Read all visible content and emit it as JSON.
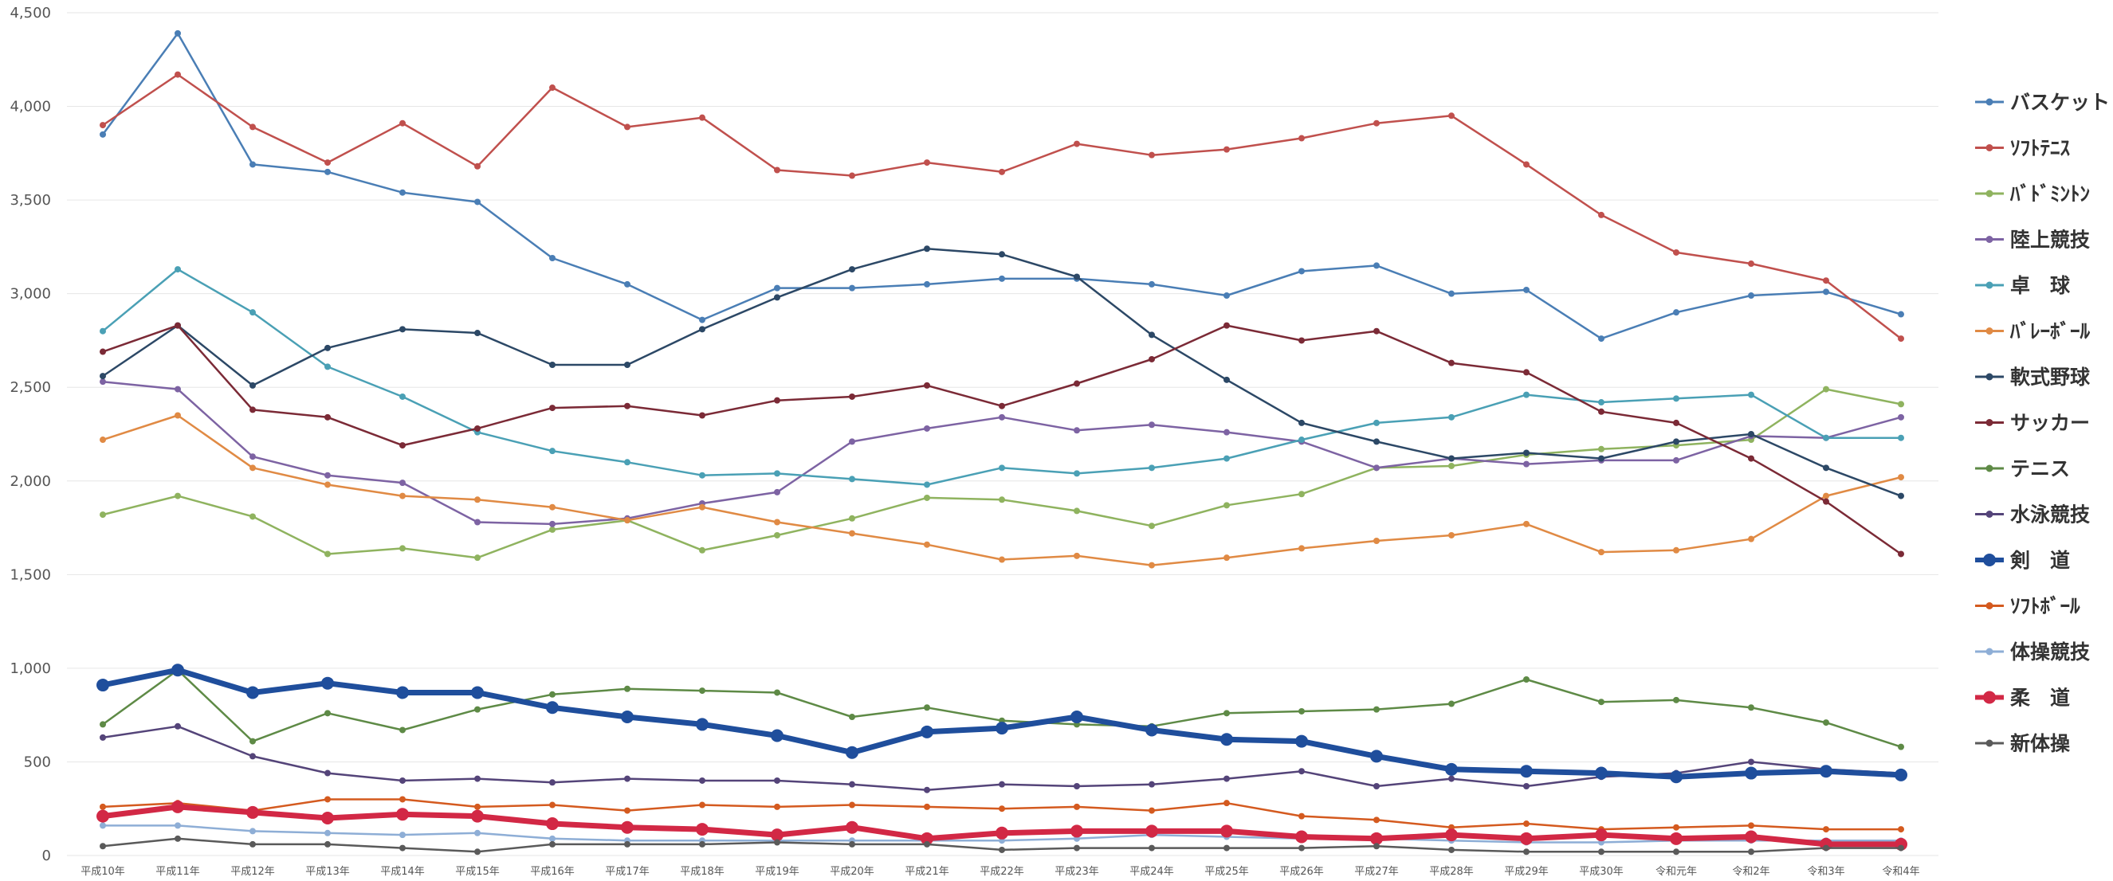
{
  "chart_data": {
    "type": "line",
    "title": "",
    "xlabel": "",
    "ylabel": "",
    "ylim": [
      0,
      4500
    ],
    "yticks": [
      0,
      500,
      1000,
      1500,
      2000,
      2500,
      3000,
      3500,
      4000,
      4500
    ],
    "ytick_labels": [
      "0",
      "500",
      "1,000",
      "1,500",
      "2,000",
      "2,500",
      "3,000",
      "3,500",
      "4,000",
      "4,500"
    ],
    "grid": true,
    "legend_position": "right",
    "categories": [
      "平成10年",
      "平成11年",
      "平成12年",
      "平成13年",
      "平成14年",
      "平成15年",
      "平成16年",
      "平成17年",
      "平成18年",
      "平成19年",
      "平成20年",
      "平成21年",
      "平成22年",
      "平成23年",
      "平成24年",
      "平成25年",
      "平成26年",
      "平成27年",
      "平成28年",
      "平成29年",
      "平成30年",
      "令和元年",
      "令和2年",
      "令和3年",
      "令和4年"
    ],
    "series": [
      {
        "name": "バスケット",
        "color": "#4a7eb5",
        "width": 2.5,
        "marker": 4,
        "values": [
          3850,
          4390,
          3690,
          3650,
          3540,
          3490,
          3190,
          3050,
          2860,
          3030,
          3030,
          3050,
          3080,
          3080,
          3050,
          2990,
          3120,
          3150,
          3000,
          3020,
          2760,
          2900,
          2990,
          3010,
          2890
        ]
      },
      {
        "name": "ｿﾌﾄﾃﾆｽ",
        "color": "#c0504d",
        "width": 2.5,
        "marker": 4,
        "values": [
          3900,
          4170,
          3890,
          3700,
          3910,
          3680,
          4100,
          3890,
          3940,
          3660,
          3630,
          3700,
          3650,
          3800,
          3740,
          3770,
          3830,
          3910,
          3950,
          3690,
          3420,
          3220,
          3160,
          3070,
          2760
        ]
      },
      {
        "name": "ﾊﾞﾄﾞﾐﾝﾄﾝ",
        "color": "#8fb35f",
        "width": 2.5,
        "marker": 4,
        "values": [
          1820,
          1920,
          1810,
          1610,
          1640,
          1590,
          1740,
          1790,
          1630,
          1710,
          1800,
          1910,
          1900,
          1840,
          1760,
          1870,
          1930,
          2070,
          2080,
          2140,
          2170,
          2190,
          2220,
          2490,
          2410
        ]
      },
      {
        "name": "陸上競技",
        "color": "#7d63a3",
        "width": 2.5,
        "marker": 4,
        "values": [
          2530,
          2490,
          2130,
          2030,
          1990,
          1780,
          1770,
          1800,
          1880,
          1940,
          2210,
          2280,
          2340,
          2270,
          2300,
          2260,
          2210,
          2070,
          2120,
          2090,
          2110,
          2110,
          2240,
          2230,
          2340
        ]
      },
      {
        "name": "卓　球",
        "color": "#4aa0b5",
        "width": 2.5,
        "marker": 4,
        "values": [
          2800,
          3130,
          2900,
          2610,
          2450,
          2260,
          2160,
          2100,
          2030,
          2040,
          2010,
          1980,
          2070,
          2040,
          2070,
          2120,
          2220,
          2310,
          2340,
          2460,
          2420,
          2440,
          2460,
          2230,
          2230
        ]
      },
      {
        "name": "ﾊﾞﾚｰﾎﾞｰﾙ",
        "color": "#e08a44",
        "width": 2.5,
        "marker": 4,
        "values": [
          2220,
          2350,
          2070,
          1980,
          1920,
          1900,
          1860,
          1790,
          1860,
          1780,
          1720,
          1660,
          1580,
          1600,
          1550,
          1590,
          1640,
          1680,
          1710,
          1770,
          1620,
          1630,
          1690,
          1920,
          2020
        ]
      },
      {
        "name": "軟式野球",
        "color": "#2c4866",
        "width": 2.5,
        "marker": 4,
        "values": [
          2560,
          2830,
          2510,
          2710,
          2810,
          2790,
          2620,
          2620,
          2810,
          2980,
          3130,
          3240,
          3210,
          3090,
          2780,
          2540,
          2310,
          2210,
          2120,
          2150,
          2120,
          2210,
          2250,
          2070,
          1920
        ]
      },
      {
        "name": "サッカー",
        "color": "#7b2a36",
        "width": 2.5,
        "marker": 4,
        "values": [
          2690,
          2830,
          2380,
          2340,
          2190,
          2280,
          2390,
          2400,
          2350,
          2430,
          2450,
          2510,
          2400,
          2520,
          2650,
          2830,
          2750,
          2800,
          2630,
          2580,
          2370,
          2310,
          2120,
          1890,
          1610
        ]
      },
      {
        "name": "テニス",
        "color": "#5e8a46",
        "width": 2.5,
        "marker": 4,
        "values": [
          700,
          990,
          610,
          760,
          670,
          780,
          860,
          890,
          880,
          870,
          740,
          790,
          720,
          700,
          690,
          760,
          770,
          780,
          810,
          940,
          820,
          830,
          790,
          710,
          580
        ]
      },
      {
        "name": "水泳競技",
        "color": "#544479",
        "width": 2.5,
        "marker": 4,
        "values": [
          630,
          690,
          530,
          440,
          400,
          410,
          390,
          410,
          400,
          400,
          380,
          350,
          380,
          370,
          380,
          410,
          450,
          370,
          410,
          370,
          420,
          440,
          500,
          460,
          440
        ]
      },
      {
        "name": "剣　道",
        "color": "#1f4e9c",
        "width": 7,
        "marker": 8,
        "values": [
          910,
          990,
          870,
          920,
          870,
          870,
          790,
          740,
          700,
          640,
          550,
          660,
          680,
          740,
          670,
          620,
          610,
          530,
          460,
          450,
          440,
          420,
          440,
          450,
          430
        ]
      },
      {
        "name": "ｿﾌﾄﾎﾞｰﾙ",
        "color": "#d45a1f",
        "width": 2.5,
        "marker": 4,
        "values": [
          260,
          280,
          240,
          300,
          300,
          260,
          270,
          240,
          270,
          260,
          270,
          260,
          250,
          260,
          240,
          280,
          210,
          190,
          150,
          170,
          140,
          150,
          160,
          140,
          140
        ]
      },
      {
        "name": "体操競技",
        "color": "#8eaed6",
        "width": 2.5,
        "marker": 4,
        "values": [
          160,
          160,
          130,
          120,
          110,
          120,
          90,
          80,
          80,
          80,
          80,
          80,
          80,
          90,
          110,
          100,
          90,
          90,
          80,
          70,
          70,
          80,
          80,
          80,
          80
        ]
      },
      {
        "name": "柔　道",
        "color": "#d22845",
        "width": 7,
        "marker": 8,
        "values": [
          210,
          260,
          230,
          200,
          220,
          210,
          170,
          150,
          140,
          110,
          150,
          90,
          120,
          130,
          130,
          130,
          100,
          90,
          110,
          90,
          110,
          90,
          100,
          60,
          60
        ]
      },
      {
        "name": "新体操",
        "color": "#5a5a5a",
        "width": 2.5,
        "marker": 4,
        "values": [
          50,
          90,
          60,
          60,
          40,
          20,
          60,
          60,
          60,
          70,
          60,
          60,
          30,
          40,
          40,
          40,
          40,
          50,
          30,
          20,
          20,
          20,
          20,
          40,
          40
        ]
      }
    ]
  }
}
